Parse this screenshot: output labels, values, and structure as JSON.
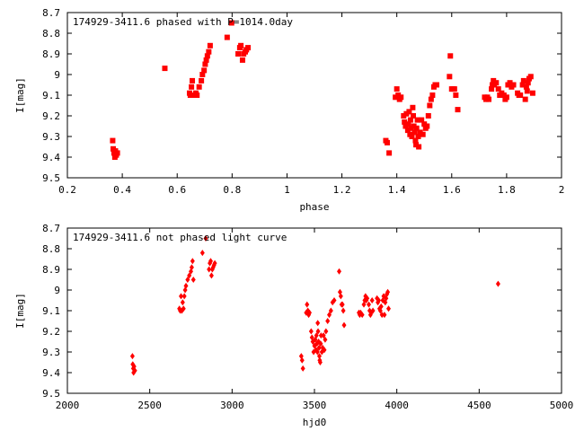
{
  "chart_data": [
    {
      "type": "scatter",
      "title": "174929-3411.6 phased with P=1014.0day",
      "xlabel": "phase",
      "ylabel": "I[mag]",
      "xlim": [
        0.2,
        2.0
      ],
      "ylim": [
        8.7,
        9.5
      ],
      "y_inverted": true,
      "xticks": [
        "0.2",
        "0.4",
        "0.6",
        "0.8",
        "1",
        "1.2",
        "1.4",
        "1.6",
        "1.8",
        "2"
      ],
      "yticks": [
        "8.7",
        "8.8",
        "8.9",
        "9",
        "9.1",
        "9.2",
        "9.3",
        "9.4",
        "9.5"
      ],
      "grid": false,
      "legend": "none",
      "marker_color": "#ff0000",
      "series": [
        {
          "points": [
            [
              0.365,
              9.32
            ],
            [
              0.367,
              9.36
            ],
            [
              0.37,
              9.38
            ],
            [
              0.373,
              9.4
            ],
            [
              0.375,
              9.37
            ],
            [
              0.378,
              9.39
            ],
            [
              0.382,
              9.38
            ],
            [
              0.555,
              8.97
            ],
            [
              0.645,
              9.09
            ],
            [
              0.648,
              9.1
            ],
            [
              0.652,
              9.06
            ],
            [
              0.655,
              9.03
            ],
            [
              0.66,
              9.1
            ],
            [
              0.668,
              9.09
            ],
            [
              0.672,
              9.1
            ],
            [
              0.68,
              9.06
            ],
            [
              0.688,
              9.03
            ],
            [
              0.692,
              9.0
            ],
            [
              0.698,
              8.98
            ],
            [
              0.702,
              8.95
            ],
            [
              0.706,
              8.93
            ],
            [
              0.71,
              8.91
            ],
            [
              0.715,
              8.89
            ],
            [
              0.72,
              8.86
            ],
            [
              0.782,
              8.82
            ],
            [
              0.798,
              8.75
            ],
            [
              0.822,
              8.9
            ],
            [
              0.828,
              8.87
            ],
            [
              0.832,
              8.86
            ],
            [
              0.838,
              8.93
            ],
            [
              0.842,
              8.9
            ],
            [
              0.848,
              8.89
            ],
            [
              0.852,
              8.88
            ],
            [
              0.858,
              8.87
            ],
            [
              1.36,
              9.32
            ],
            [
              1.365,
              9.33
            ],
            [
              1.372,
              9.38
            ],
            [
              1.395,
              9.11
            ],
            [
              1.4,
              9.07
            ],
            [
              1.405,
              9.1
            ],
            [
              1.41,
              9.12
            ],
            [
              1.415,
              9.11
            ],
            [
              1.425,
              9.2
            ],
            [
              1.428,
              9.23
            ],
            [
              1.432,
              9.25
            ],
            [
              1.435,
              9.19
            ],
            [
              1.44,
              9.27
            ],
            [
              1.442,
              9.24
            ],
            [
              1.445,
              9.18
            ],
            [
              1.448,
              9.29
            ],
            [
              1.45,
              9.22
            ],
            [
              1.452,
              9.26
            ],
            [
              1.455,
              9.3
            ],
            [
              1.458,
              9.16
            ],
            [
              1.46,
              9.2
            ],
            [
              1.462,
              9.25
            ],
            [
              1.465,
              9.28
            ],
            [
              1.468,
              9.32
            ],
            [
              1.47,
              9.34
            ],
            [
              1.472,
              9.26
            ],
            [
              1.475,
              9.22
            ],
            [
              1.478,
              9.3
            ],
            [
              1.48,
              9.35
            ],
            [
              1.485,
              9.28
            ],
            [
              1.49,
              9.22
            ],
            [
              1.495,
              9.29
            ],
            [
              1.5,
              9.24
            ],
            [
              1.505,
              9.26
            ],
            [
              1.51,
              9.25
            ],
            [
              1.515,
              9.2
            ],
            [
              1.52,
              9.15
            ],
            [
              1.525,
              9.12
            ],
            [
              1.53,
              9.1
            ],
            [
              1.535,
              9.06
            ],
            [
              1.54,
              9.05
            ],
            [
              1.545,
              9.05
            ],
            [
              1.592,
              9.01
            ],
            [
              1.595,
              8.91
            ],
            [
              1.6,
              9.07
            ],
            [
              1.605,
              9.07
            ],
            [
              1.61,
              9.07
            ],
            [
              1.615,
              9.1
            ],
            [
              1.622,
              9.17
            ],
            [
              1.72,
              9.11
            ],
            [
              1.725,
              9.12
            ],
            [
              1.73,
              9.11
            ],
            [
              1.735,
              9.12
            ],
            [
              1.745,
              9.07
            ],
            [
              1.748,
              9.05
            ],
            [
              1.752,
              9.03
            ],
            [
              1.755,
              9.05
            ],
            [
              1.762,
              9.04
            ],
            [
              1.77,
              9.07
            ],
            [
              1.775,
              9.1
            ],
            [
              1.782,
              9.09
            ],
            [
              1.79,
              9.1
            ],
            [
              1.795,
              9.12
            ],
            [
              1.8,
              9.11
            ],
            [
              1.805,
              9.05
            ],
            [
              1.812,
              9.04
            ],
            [
              1.818,
              9.06
            ],
            [
              1.825,
              9.05
            ],
            [
              1.84,
              9.09
            ],
            [
              1.845,
              9.1
            ],
            [
              1.85,
              9.1
            ],
            [
              1.858,
              9.05
            ],
            [
              1.862,
              9.03
            ],
            [
              1.868,
              9.12
            ],
            [
              1.872,
              9.06
            ],
            [
              1.875,
              9.08
            ],
            [
              1.878,
              9.04
            ],
            [
              1.882,
              9.02
            ],
            [
              1.888,
              9.01
            ],
            [
              1.895,
              9.09
            ]
          ]
        }
      ]
    },
    {
      "type": "scatter",
      "title": "174929-3411.6 not phased light curve",
      "xlabel": "hjd0",
      "ylabel": "I[mag]",
      "xlim": [
        2000,
        5000
      ],
      "ylim": [
        8.7,
        9.5
      ],
      "y_inverted": true,
      "xticks": [
        "2000",
        "2500",
        "3000",
        "3500",
        "4000",
        "4500",
        "5000"
      ],
      "yticks": [
        "8.7",
        "8.8",
        "8.9",
        "9",
        "9.1",
        "9.2",
        "9.3",
        "9.4",
        "9.5"
      ],
      "grid": false,
      "legend": "none",
      "marker_color": "#ff0000",
      "series": [
        {
          "points": [
            [
              2395,
              9.32
            ],
            [
              2397,
              9.36
            ],
            [
              2400,
              9.38
            ],
            [
              2402,
              9.4
            ],
            [
              2405,
              9.37
            ],
            [
              2410,
              9.39
            ],
            [
              2680,
              9.09
            ],
            [
              2685,
              9.1
            ],
            [
              2690,
              9.03
            ],
            [
              2695,
              9.1
            ],
            [
              2700,
              9.06
            ],
            [
              2705,
              9.09
            ],
            [
              2710,
              9.03
            ],
            [
              2715,
              9.0
            ],
            [
              2720,
              8.98
            ],
            [
              2730,
              8.95
            ],
            [
              2740,
              8.93
            ],
            [
              2750,
              8.91
            ],
            [
              2755,
              8.89
            ],
            [
              2760,
              8.86
            ],
            [
              2765,
              8.95
            ],
            [
              2820,
              8.82
            ],
            [
              2840,
              8.75
            ],
            [
              2860,
              8.9
            ],
            [
              2865,
              8.87
            ],
            [
              2870,
              8.86
            ],
            [
              2875,
              8.93
            ],
            [
              2880,
              8.9
            ],
            [
              2885,
              8.89
            ],
            [
              2890,
              8.88
            ],
            [
              2895,
              8.87
            ],
            [
              3420,
              9.32
            ],
            [
              3425,
              9.34
            ],
            [
              3430,
              9.38
            ],
            [
              3450,
              9.11
            ],
            [
              3455,
              9.07
            ],
            [
              3460,
              9.1
            ],
            [
              3465,
              9.12
            ],
            [
              3470,
              9.11
            ],
            [
              3480,
              9.2
            ],
            [
              3485,
              9.23
            ],
            [
              3490,
              9.25
            ],
            [
              3495,
              9.3
            ],
            [
              3500,
              9.27
            ],
            [
              3505,
              9.24
            ],
            [
              3510,
              9.29
            ],
            [
              3512,
              9.22
            ],
            [
              3515,
              9.26
            ],
            [
              3518,
              9.3
            ],
            [
              3520,
              9.16
            ],
            [
              3522,
              9.2
            ],
            [
              3525,
              9.25
            ],
            [
              3528,
              9.28
            ],
            [
              3530,
              9.32
            ],
            [
              3532,
              9.34
            ],
            [
              3535,
              9.35
            ],
            [
              3538,
              9.26
            ],
            [
              3540,
              9.22
            ],
            [
              3545,
              9.3
            ],
            [
              3550,
              9.28
            ],
            [
              3555,
              9.22
            ],
            [
              3560,
              9.29
            ],
            [
              3565,
              9.24
            ],
            [
              3570,
              9.2
            ],
            [
              3580,
              9.15
            ],
            [
              3590,
              9.12
            ],
            [
              3600,
              9.1
            ],
            [
              3610,
              9.06
            ],
            [
              3620,
              9.05
            ],
            [
              3650,
              8.91
            ],
            [
              3655,
              9.01
            ],
            [
              3660,
              9.03
            ],
            [
              3665,
              9.07
            ],
            [
              3670,
              9.07
            ],
            [
              3675,
              9.1
            ],
            [
              3680,
              9.17
            ],
            [
              3770,
              9.11
            ],
            [
              3775,
              9.12
            ],
            [
              3780,
              9.11
            ],
            [
              3790,
              9.12
            ],
            [
              3800,
              9.07
            ],
            [
              3805,
              9.05
            ],
            [
              3810,
              9.03
            ],
            [
              3815,
              9.05
            ],
            [
              3820,
              9.04
            ],
            [
              3830,
              9.07
            ],
            [
              3835,
              9.1
            ],
            [
              3840,
              9.12
            ],
            [
              3845,
              9.11
            ],
            [
              3850,
              9.05
            ],
            [
              3855,
              9.1
            ],
            [
              3880,
              9.04
            ],
            [
              3885,
              9.06
            ],
            [
              3890,
              9.05
            ],
            [
              3895,
              9.09
            ],
            [
              3900,
              9.1
            ],
            [
              3905,
              9.08
            ],
            [
              3910,
              9.12
            ],
            [
              3915,
              9.05
            ],
            [
              3920,
              9.03
            ],
            [
              3925,
              9.12
            ],
            [
              3930,
              9.06
            ],
            [
              3935,
              9.04
            ],
            [
              3940,
              9.02
            ],
            [
              3945,
              9.01
            ],
            [
              3950,
              9.09
            ],
            [
              4615,
              8.97
            ]
          ]
        }
      ]
    }
  ]
}
